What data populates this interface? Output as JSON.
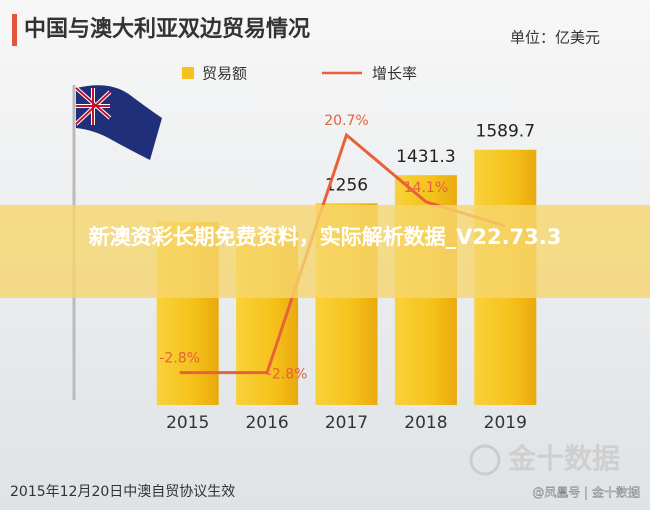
{
  "chart_data": {
    "type": "bar-line",
    "title": "中国与澳大利亚双边贸易情况",
    "subtitle": "单位：亿美元",
    "categories": [
      "2015",
      "2016",
      "2017",
      "2018",
      "2019"
    ],
    "series": [
      {
        "name": "贸易额",
        "type": "bar",
        "color": "#f5c21b",
        "values": [
          1140,
          1080,
          1256,
          1431.3,
          1589.7
        ],
        "value_labels": [
          null,
          null,
          "1256",
          "1431.3",
          "1589.7"
        ]
      },
      {
        "name": "增长率",
        "type": "line",
        "axis": "y2",
        "color": "#e8603c",
        "values": [
          -2.8,
          -2.8,
          20.7,
          14.1,
          11.7
        ],
        "value_labels": [
          "-2.8%",
          "-2.8%",
          "20.7%",
          "14.1%",
          null
        ]
      }
    ],
    "ylim": [
      0,
      1700
    ],
    "y2lim": [
      -6,
      21
    ],
    "grid": false,
    "legend": "top"
  },
  "overlay": {
    "text": "新澳资彩长期免费资料，实际解析数据_V22.73.3"
  },
  "footer": {
    "note": "2015年12月20日中澳自贸协议生效",
    "watermark": "金十数据",
    "credit": "@凤凰号 | 金十数据"
  }
}
